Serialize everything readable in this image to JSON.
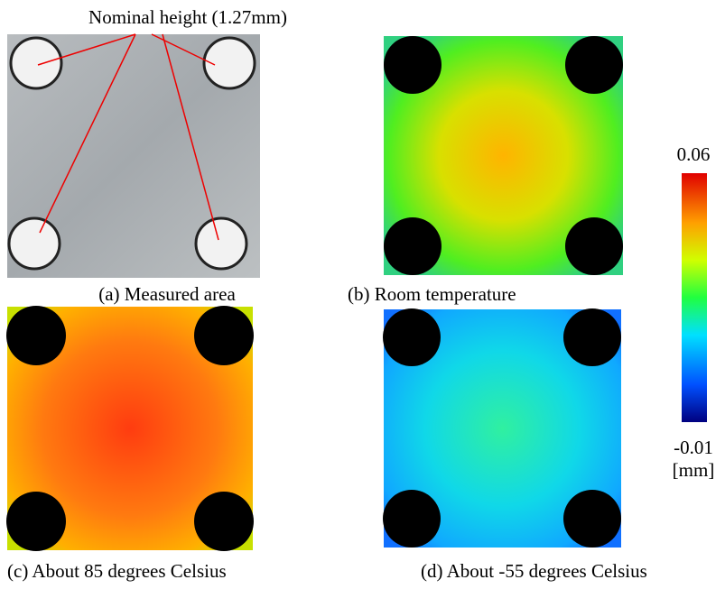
{
  "annotation": "Nominal height (1.27mm)",
  "captions": [
    "(a) Measured area",
    "(b) Room temperature",
    "(c) About 85 degrees Celsius",
    "(d) About -55 degrees Celsius"
  ],
  "colorbar": {
    "max_label": "0.06",
    "min_label": "-0.01",
    "unit": "[mm]"
  }
}
